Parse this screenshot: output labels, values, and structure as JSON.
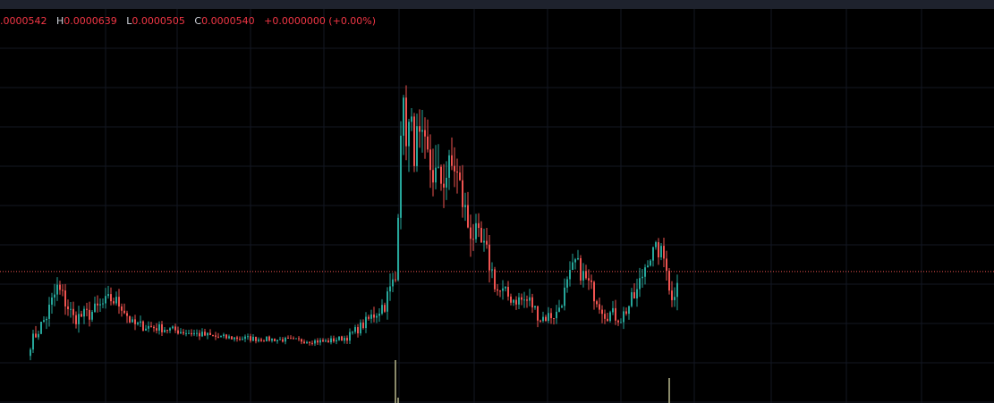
{
  "colors": {
    "background": "#000000",
    "topbar": "#1e222d",
    "grid": "#131722",
    "up": "#26a69a",
    "down": "#ef5350",
    "legend_values": "#f23645",
    "legend_keys": "#d1d4dc",
    "last_price_line": "#ef5350",
    "volume": "#8a8a6a"
  },
  "legend": {
    "open_value": ".0000542",
    "high_key": "H",
    "high_value": "0.0000639",
    "low_key": "L",
    "low_value": "0.0000505",
    "close_key": "C",
    "close_value": "0.0000540",
    "change": "+0.0000000 (+0.00%)"
  },
  "chart_data": {
    "type": "candlestick",
    "ylim": [
      4.78e-05,
      6.68e-05
    ],
    "last_price": 5.4e-05,
    "grid": true,
    "legend_position": "top-left",
    "candle_anchors": [
      {
        "i": 0,
        "close": 5.06e-05,
        "sigma": 0.35
      },
      {
        "i": 6,
        "close": 5.19e-05,
        "sigma": 0.5
      },
      {
        "i": 10,
        "close": 5.32e-05,
        "sigma": 0.6
      },
      {
        "i": 13,
        "close": 5.26e-05,
        "sigma": 0.6
      },
      {
        "i": 16,
        "close": 5.18e-05,
        "sigma": 0.45
      },
      {
        "i": 22,
        "close": 5.2e-05,
        "sigma": 0.45
      },
      {
        "i": 30,
        "close": 5.27e-05,
        "sigma": 0.5
      },
      {
        "i": 34,
        "close": 5.24e-05,
        "sigma": 0.45
      },
      {
        "i": 38,
        "close": 5.15e-05,
        "sigma": 0.35
      },
      {
        "i": 50,
        "close": 5.13e-05,
        "sigma": 0.25
      },
      {
        "i": 70,
        "close": 5.09e-05,
        "sigma": 0.2
      },
      {
        "i": 90,
        "close": 5.08e-05,
        "sigma": 0.15
      },
      {
        "i": 110,
        "close": 5.07e-05,
        "sigma": 0.15
      },
      {
        "i": 118,
        "close": 5.09e-05,
        "sigma": 0.2
      },
      {
        "i": 125,
        "close": 5.16e-05,
        "sigma": 0.35
      },
      {
        "i": 132,
        "close": 5.25e-05,
        "sigma": 0.55
      },
      {
        "i": 136,
        "close": 5.36e-05,
        "sigma": 1.0
      },
      {
        "i": 138,
        "close": 6.14e-05,
        "sigma": 1.6
      },
      {
        "i": 142,
        "close": 6.03e-05,
        "sigma": 1.6
      },
      {
        "i": 148,
        "close": 5.92e-05,
        "sigma": 1.3
      },
      {
        "i": 152,
        "close": 5.82e-05,
        "sigma": 1.2
      },
      {
        "i": 158,
        "close": 5.9e-05,
        "sigma": 1.2
      },
      {
        "i": 163,
        "close": 5.62e-05,
        "sigma": 1.0
      },
      {
        "i": 170,
        "close": 5.48e-05,
        "sigma": 0.7
      },
      {
        "i": 174,
        "close": 5.31e-05,
        "sigma": 0.6
      },
      {
        "i": 180,
        "close": 5.27e-05,
        "sigma": 0.45
      },
      {
        "i": 186,
        "close": 5.26e-05,
        "sigma": 0.45
      },
      {
        "i": 190,
        "close": 5.18e-05,
        "sigma": 0.4
      },
      {
        "i": 196,
        "close": 5.2e-05,
        "sigma": 0.4
      },
      {
        "i": 203,
        "close": 5.44e-05,
        "sigma": 0.6
      },
      {
        "i": 208,
        "close": 5.34e-05,
        "sigma": 0.5
      },
      {
        "i": 214,
        "close": 5.21e-05,
        "sigma": 0.5
      },
      {
        "i": 220,
        "close": 5.18e-05,
        "sigma": 0.4
      },
      {
        "i": 226,
        "close": 5.3e-05,
        "sigma": 0.6
      },
      {
        "i": 230,
        "close": 5.47e-05,
        "sigma": 0.6
      },
      {
        "i": 234,
        "close": 5.5e-05,
        "sigma": 0.6
      },
      {
        "i": 237,
        "close": 5.44e-05,
        "sigma": 0.6
      },
      {
        "i": 239,
        "close": 5.25e-05,
        "sigma": 0.9
      },
      {
        "i": 241,
        "close": 5.4e-05,
        "sigma": 0.8
      }
    ],
    "volume_spikes": [
      {
        "i": 136,
        "height": 48
      },
      {
        "i": 137,
        "height": 6
      },
      {
        "i": 238,
        "height": 28
      }
    ],
    "candle_count": 242,
    "price_at_y": [
      {
        "price": 6.68e-05,
        "y": 0
      },
      {
        "price": 4.78e-05,
        "y": 451
      }
    ]
  }
}
